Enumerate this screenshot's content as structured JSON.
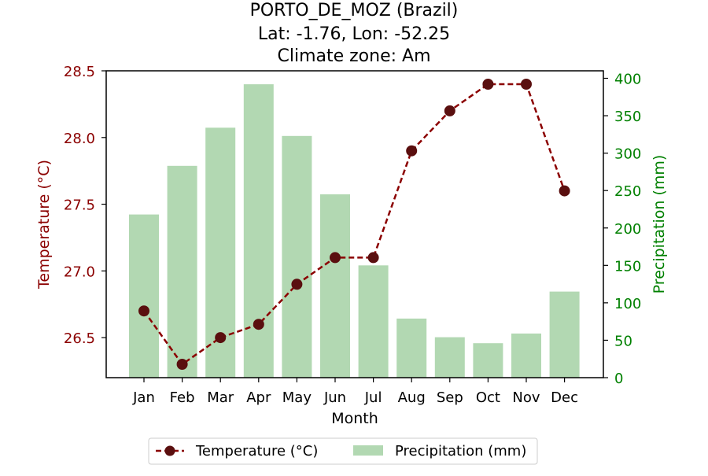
{
  "chart_data": {
    "type": "bar+line",
    "title_lines": [
      "PORTO_DE_MOZ (Brazil)",
      "Lat: -1.76, Lon: -52.25",
      "Climate zone: Am"
    ],
    "xlabel": "Month",
    "ylabel_left": "Temperature (°C)",
    "ylabel_right": "Precipitation (mm)",
    "categories": [
      "Jan",
      "Feb",
      "Mar",
      "Apr",
      "May",
      "Jun",
      "Jul",
      "Aug",
      "Sep",
      "Oct",
      "Nov",
      "Dec"
    ],
    "temperature": {
      "name": "Temperature (°C)",
      "values": [
        26.7,
        26.3,
        26.5,
        26.6,
        26.9,
        27.1,
        27.1,
        27.9,
        28.2,
        28.4,
        28.4,
        27.6
      ],
      "color": "#8b0000",
      "marker_color": "#5a0f0f",
      "line_style": "dashed"
    },
    "precipitation": {
      "name": "Precipitation (mm)",
      "values": [
        218,
        283,
        334,
        392,
        323,
        245,
        150,
        79,
        54,
        46,
        59,
        115
      ],
      "color": "#b2d8b2"
    },
    "ylim_left": [
      26.2,
      28.5
    ],
    "ylim_right": [
      0,
      410
    ],
    "left_ticks": [
      "26.5",
      "27.0",
      "27.5",
      "28.0",
      "28.5"
    ],
    "right_ticks": [
      "0",
      "50",
      "100",
      "150",
      "200",
      "250",
      "300",
      "350",
      "400"
    ],
    "left_axis_color": "#8b0000",
    "right_axis_color": "#008000",
    "legend_position": "bottom-center",
    "grid": false
  }
}
